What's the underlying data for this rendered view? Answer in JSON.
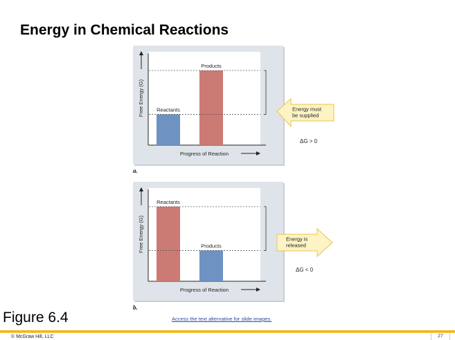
{
  "slide": {
    "title": "Energy in Chemical Reactions",
    "figure_label": "Figure 6.4",
    "alt_text_link": "Access the text alternative for slide images.",
    "copyright": "© McGraw Hill, LLC",
    "page_number": "27"
  },
  "colors": {
    "panel_bg": "#dfe4ea",
    "plot_bg": "#ffffff",
    "blue_bar": "#6e92c2",
    "red_bar": "#cc7a74",
    "callout_fill": "#fdf3c4",
    "callout_stroke": "#e8c64a",
    "accent": "#f5b400"
  },
  "chart_data": [
    {
      "type": "bar",
      "panel_label": "a.",
      "ylabel": "Free Energy (G)",
      "xlabel": "Progress of Reaction",
      "categories": [
        "Reactants",
        "Products"
      ],
      "values": [
        0.33,
        0.8
      ],
      "bar_colors": [
        "#6e92c2",
        "#cc7a74"
      ],
      "ylim": [
        0,
        1
      ],
      "callout": "Energy must be supplied",
      "callout_lines": [
        "Energy must",
        "be supplied"
      ],
      "callout_direction": "left",
      "delta_g": "ΔG > 0"
    },
    {
      "type": "bar",
      "panel_label": "b.",
      "ylabel": "Free Energy (G)",
      "xlabel": "Progress of Reaction",
      "categories": [
        "Reactants",
        "Products"
      ],
      "values": [
        0.8,
        0.33
      ],
      "bar_colors": [
        "#cc7a74",
        "#6e92c2"
      ],
      "ylim": [
        0,
        1
      ],
      "callout": "Energy is released",
      "callout_lines": [
        "Energy is",
        "released"
      ],
      "callout_direction": "right",
      "delta_g": "ΔG < 0"
    }
  ]
}
